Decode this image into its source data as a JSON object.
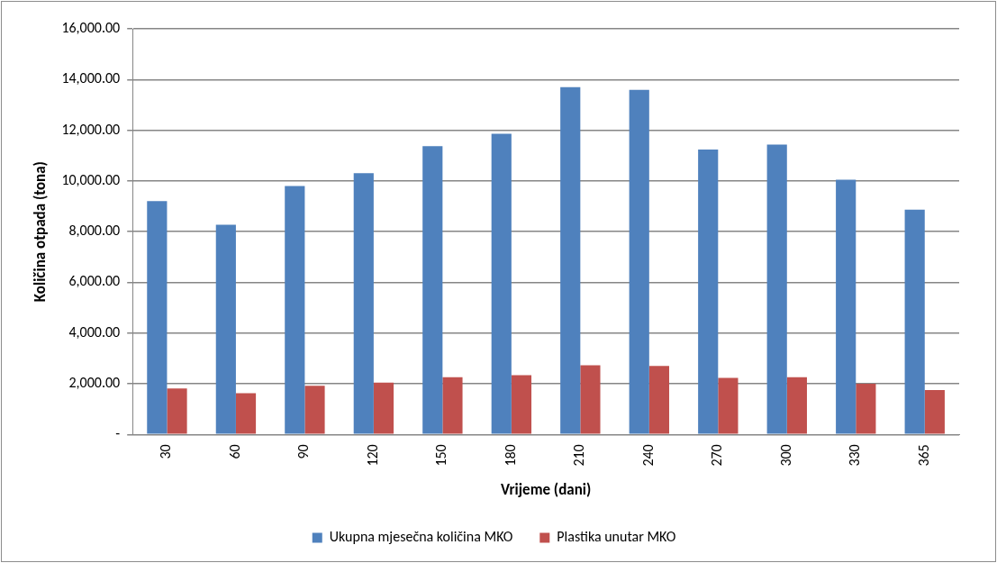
{
  "chart_data": {
    "type": "bar",
    "xlabel": "Vrijeme (dani)",
    "ylabel": "Količina otpada (tona)",
    "categories": [
      "30",
      "60",
      "90",
      "120",
      "150",
      "180",
      "210",
      "240",
      "270",
      "300",
      "330",
      "365"
    ],
    "series": [
      {
        "name": "Ukupna mjesečna količina MKO",
        "color": "#4f81bd",
        "values": [
          9200,
          8270,
          9800,
          10310,
          11370,
          11860,
          13700,
          13590,
          11240,
          11430,
          10050,
          8870
        ]
      },
      {
        "name": "Plastika unutar MKO",
        "color": "#c0504d",
        "values": [
          1810,
          1630,
          1920,
          2040,
          2260,
          2340,
          2730,
          2700,
          2230,
          2260,
          2000,
          1750
        ]
      }
    ],
    "ylim": [
      0,
      16000
    ],
    "yticks": [
      {
        "value": 0,
        "label": "-"
      },
      {
        "value": 2000,
        "label": "2,000.00"
      },
      {
        "value": 4000,
        "label": "4,000.00"
      },
      {
        "value": 6000,
        "label": "6,000.00"
      },
      {
        "value": 8000,
        "label": "8,000.00"
      },
      {
        "value": 10000,
        "label": "10,000.00"
      },
      {
        "value": 12000,
        "label": "12,000.00"
      },
      {
        "value": 14000,
        "label": "14,000.00"
      },
      {
        "value": 16000,
        "label": "16,000.00"
      }
    ],
    "grid": "y",
    "legend": "bottom"
  }
}
